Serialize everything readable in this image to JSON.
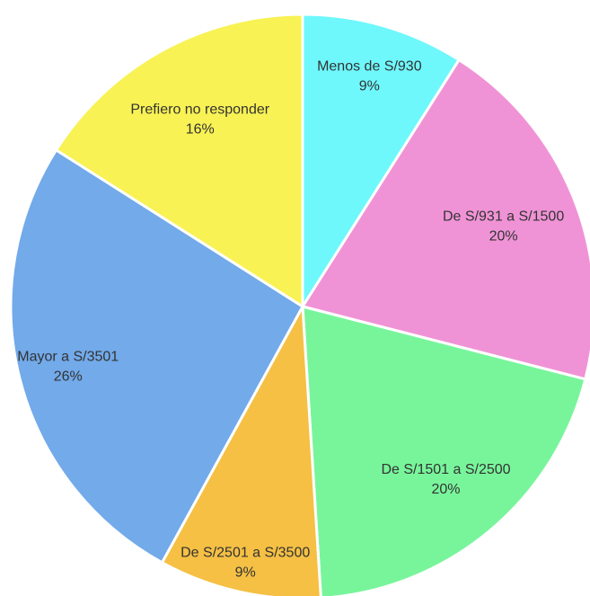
{
  "chart_data": {
    "type": "pie",
    "categories": [
      "Menos de S/930",
      "De S/931 a S/1500",
      "De S/1501 a S/2500",
      "De S/2501 a S/3500",
      "Mayor a S/3501",
      "Prefiero no responder"
    ],
    "values": [
      9,
      20,
      20,
      9,
      26,
      16
    ],
    "value_labels": [
      "9%",
      "20%",
      "20%",
      "9%",
      "26%",
      "16%"
    ],
    "colors": [
      "#6ef8fc",
      "#f093d6",
      "#78f59b",
      "#f5c044",
      "#72aaea",
      "#f8f254"
    ]
  }
}
